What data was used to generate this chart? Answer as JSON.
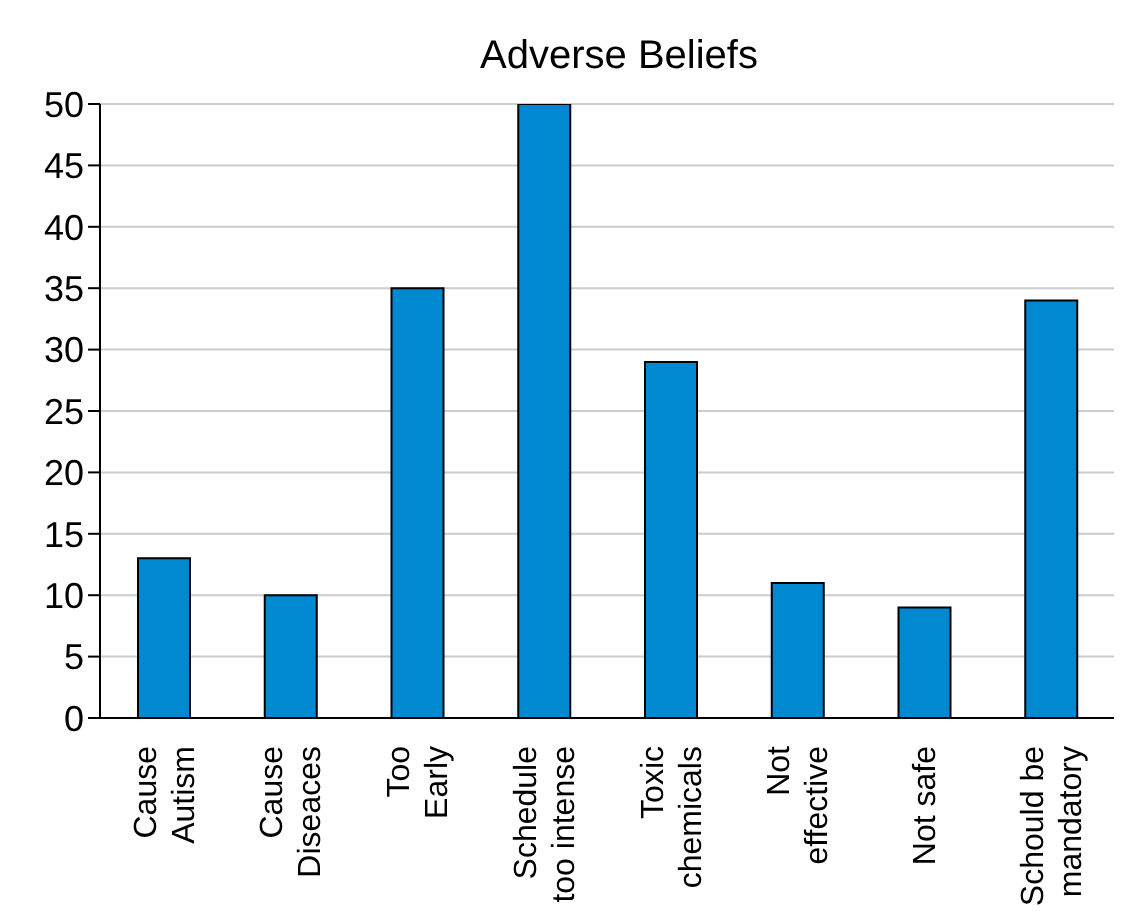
{
  "chart_data": {
    "type": "bar",
    "title": "Adverse Beliefs",
    "categories": [
      "Cause\nAutism",
      "Cause\nDiseaces",
      "Too\nEarly",
      "Schedule\ntoo intense",
      "Toxic\nchemicals",
      "Not\neffective",
      "Not safe",
      "Schould be\nmandatory"
    ],
    "values": [
      13,
      10,
      35,
      50,
      29,
      11,
      9,
      34
    ],
    "color": "#0088d1",
    "ylim": [
      0,
      50
    ],
    "yticks": [
      0,
      5,
      10,
      15,
      20,
      25,
      30,
      35,
      40,
      45,
      50
    ],
    "grid": "y"
  }
}
